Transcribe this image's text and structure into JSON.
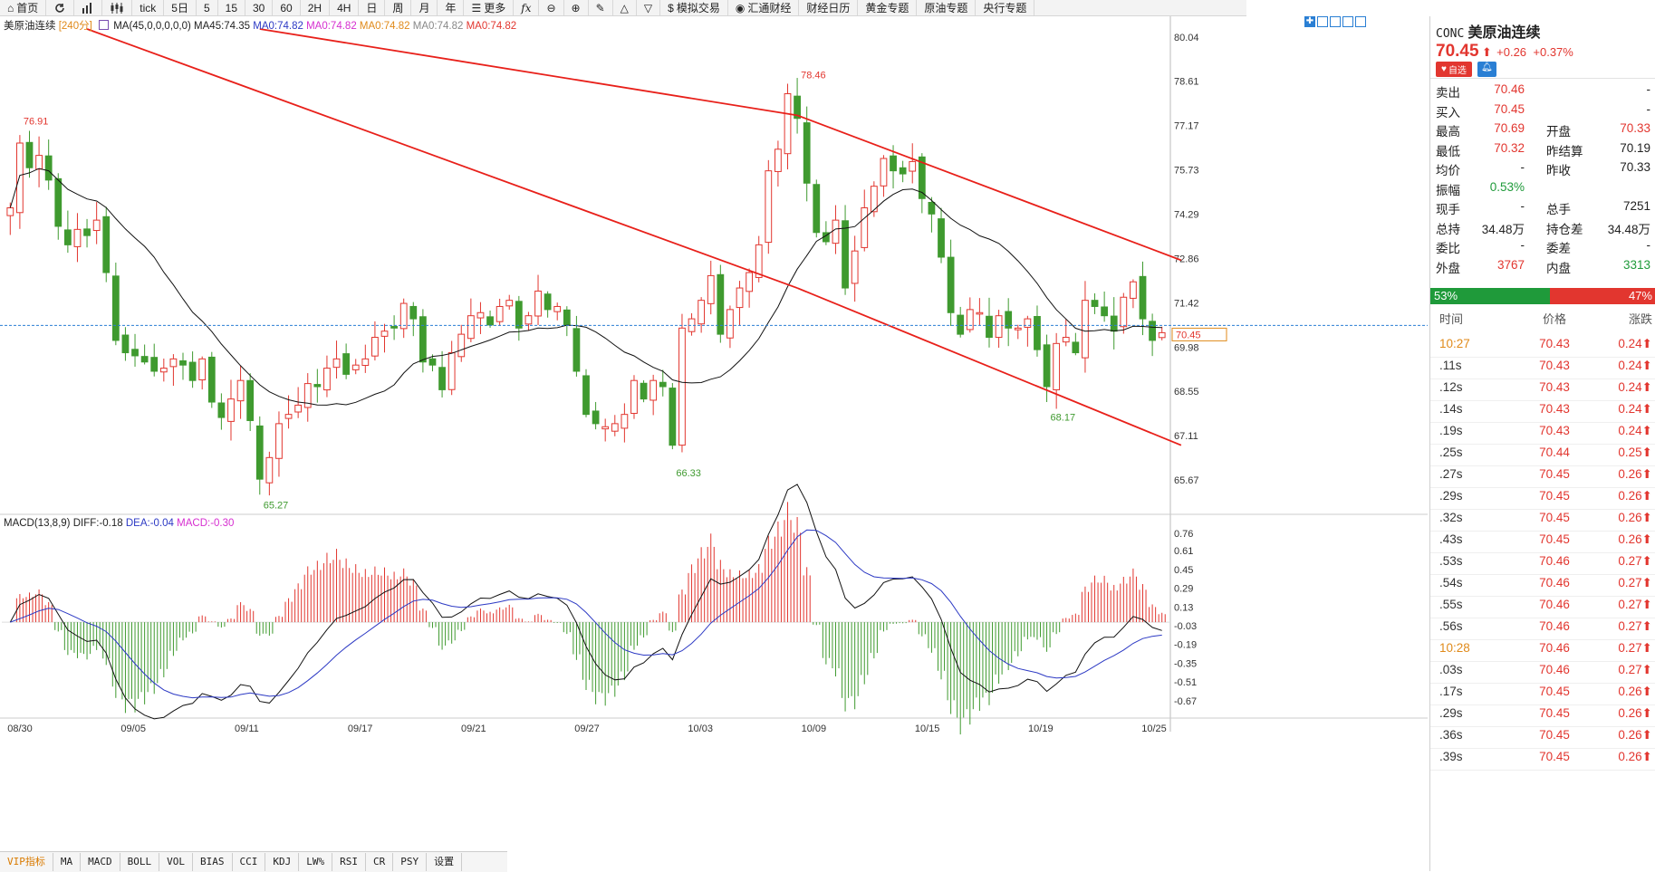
{
  "toolbar": {
    "items": [
      "首页",
      "",
      "",
      "",
      "tick",
      "5日",
      "5",
      "15",
      "30",
      "60",
      "2H",
      "4H",
      "日",
      "周",
      "月",
      "年",
      "更多",
      "",
      "",
      "",
      "",
      "",
      "模拟交易",
      "汇通财经",
      "财经日历",
      "黄金专题",
      "原油专题",
      "央行专题"
    ]
  },
  "legend": {
    "symbol": "美原油连续",
    "period": "[240分]",
    "ma_params": "MA(45,0,0,0,0,0)",
    "ma45": "MA45:74.35",
    "ma0_a": "MA0:74.82",
    "ma0_b": "MA0:74.82",
    "ma0_c": "MA0:74.82",
    "ma0_d": "MA0:74.82",
    "ma0_e": "MA0:74.82"
  },
  "macd_legend": {
    "name": "MACD(13,8,9)",
    "diff": "DIFF:-0.18",
    "dea": "DEA:-0.04",
    "macd": "MACD:-0.30"
  },
  "colors": {
    "up": "#e2362f",
    "down": "#3f9a2f",
    "trend": "#e8201a",
    "ma": "#111111",
    "dea": "#2c39c4",
    "current": "#2a7fd4"
  },
  "chart_data": [
    {
      "type": "candlestick",
      "title": "美原油连续 [240分]",
      "ylim": [
        65.0,
        80.3
      ],
      "y_ticks": [
        "80.04",
        "78.61",
        "77.17",
        "75.73",
        "74.29",
        "72.86",
        "71.42",
        "69.98",
        "68.55",
        "67.11",
        "65.67"
      ],
      "x_labels": [
        "08/30",
        "09/05",
        "09/11",
        "09/17",
        "09/21",
        "09/27",
        "10/03",
        "10/09",
        "10/15",
        "10/19",
        "10/25"
      ],
      "close_series": [
        74.5,
        76.6,
        75.8,
        76.2,
        75.4,
        73.9,
        73.3,
        73.8,
        73.6,
        74.1,
        72.4,
        70.2,
        69.8,
        69.7,
        69.5,
        69.2,
        69.3,
        69.6,
        69.4,
        68.9,
        69.6,
        68.2,
        67.7,
        68.3,
        68.9,
        67.6,
        65.7,
        66.4,
        67.5,
        67.8,
        68.1,
        68.8,
        68.7,
        69.3,
        69.6,
        69.1,
        69.4,
        69.6,
        70.3,
        70.5,
        70.6,
        71.4,
        70.9,
        69.5,
        69.4,
        68.6,
        69.8,
        70.4,
        71.0,
        71.1,
        70.7,
        71.3,
        71.5,
        70.6,
        71.0,
        71.8,
        71.2,
        71.3,
        70.7,
        69.2,
        67.8,
        67.5,
        67.4,
        67.5,
        67.8,
        68.9,
        68.3,
        68.9,
        68.7,
        66.8,
        70.6,
        70.9,
        71.5,
        72.3,
        70.4,
        71.2,
        71.9,
        72.4,
        73.3,
        75.7,
        76.4,
        78.2,
        77.4,
        75.3,
        73.7,
        73.4,
        74.1,
        71.9,
        73.1,
        74.5,
        75.2,
        76.1,
        75.7,
        75.6,
        76.0,
        74.8,
        74.3,
        72.9,
        71.1,
        70.4,
        71.2,
        71.1,
        70.3,
        71.0,
        70.6,
        70.6,
        70.9,
        69.9,
        68.7,
        70.1,
        70.3,
        69.8,
        71.5,
        71.3,
        71.0,
        70.5,
        71.6,
        72.1,
        70.9,
        70.2,
        70.45
      ],
      "ma45_last": 74.35,
      "labels": [
        "78.46",
        "76.91",
        "65.27",
        "66.33",
        "68.17"
      ],
      "current": "70.45"
    },
    {
      "type": "macd",
      "y_ticks": [
        "0.76",
        "0.61",
        "0.45",
        "0.29",
        "0.13",
        "-0.03",
        "-0.19",
        "-0.35",
        "-0.51",
        "-0.67"
      ],
      "ylim": [
        -0.78,
        0.82
      ],
      "diff_last": -0.18,
      "dea_last": -0.04,
      "macd_last": -0.3
    }
  ],
  "panel": {
    "code": "CONC",
    "name": "美原油连续",
    "price": "70.45",
    "arrow": "⬆",
    "change": "+0.26",
    "change_pct": "+0.37%",
    "watch_label": "自选",
    "quotes": [
      {
        "l1": "卖出",
        "v1": "70.46",
        "l2": "",
        "v2": "-"
      },
      {
        "l1": "买入",
        "v1": "70.45",
        "l2": "",
        "v2": "-"
      },
      {
        "l1": "最高",
        "v1": "70.69",
        "l2": "开盘",
        "v2": "70.33"
      },
      {
        "l1": "最低",
        "v1": "70.32",
        "l2": "昨结算",
        "v2": "70.19"
      },
      {
        "l1": "均价",
        "v1": "-",
        "l2": "昨收",
        "v2": "70.33"
      },
      {
        "l1": "振幅",
        "v1": "0.53%",
        "l2": "",
        "v2": ""
      },
      {
        "l1": "现手",
        "v1": "-",
        "l2": "总手",
        "v2": "7251"
      },
      {
        "l1": "总持",
        "v1": "34.48万",
        "l2": "持仓差",
        "v2": "34.48万"
      },
      {
        "l1": "委比",
        "v1": "-",
        "l2": "委差",
        "v2": "-"
      },
      {
        "l1": "外盘",
        "v1": "3767",
        "l2": "内盘",
        "v2": "3313"
      }
    ],
    "buy_pct": 53,
    "buy_label": "53%",
    "sell_label": "47%",
    "ticks_header": {
      "time": "时间",
      "price": "价格",
      "chg": "涨跌"
    },
    "ticks": [
      {
        "time": "10:27",
        "price": "70.43",
        "chg": "0.24⬆"
      },
      {
        "time": ".11s",
        "price": "70.43",
        "chg": "0.24⬆"
      },
      {
        "time": ".12s",
        "price": "70.43",
        "chg": "0.24⬆"
      },
      {
        "time": ".14s",
        "price": "70.43",
        "chg": "0.24⬆"
      },
      {
        "time": ".19s",
        "price": "70.43",
        "chg": "0.24⬆"
      },
      {
        "time": ".25s",
        "price": "70.44",
        "chg": "0.25⬆"
      },
      {
        "time": ".27s",
        "price": "70.45",
        "chg": "0.26⬆"
      },
      {
        "time": ".29s",
        "price": "70.45",
        "chg": "0.26⬆"
      },
      {
        "time": ".32s",
        "price": "70.45",
        "chg": "0.26⬆"
      },
      {
        "time": ".43s",
        "price": "70.45",
        "chg": "0.26⬆"
      },
      {
        "time": ".53s",
        "price": "70.46",
        "chg": "0.27⬆"
      },
      {
        "time": ".54s",
        "price": "70.46",
        "chg": "0.27⬆"
      },
      {
        "time": ".55s",
        "price": "70.46",
        "chg": "0.27⬆"
      },
      {
        "time": ".56s",
        "price": "70.46",
        "chg": "0.27⬆"
      },
      {
        "time": "10:28",
        "price": "70.46",
        "chg": "0.27⬆"
      },
      {
        "time": ".03s",
        "price": "70.46",
        "chg": "0.27⬆"
      },
      {
        "time": ".17s",
        "price": "70.45",
        "chg": "0.26⬆"
      },
      {
        "time": ".29s",
        "price": "70.45",
        "chg": "0.26⬆"
      },
      {
        "time": ".36s",
        "price": "70.45",
        "chg": "0.26⬆"
      },
      {
        "time": ".39s",
        "price": "70.45",
        "chg": "0.26⬆"
      }
    ]
  },
  "bottom_tabs": [
    "VIP指标",
    "MA",
    "MACD",
    "BOLL",
    "VOL",
    "BIAS",
    "CCI",
    "KDJ",
    "LW%",
    "RSI",
    "CR",
    "PSY",
    "设置"
  ]
}
